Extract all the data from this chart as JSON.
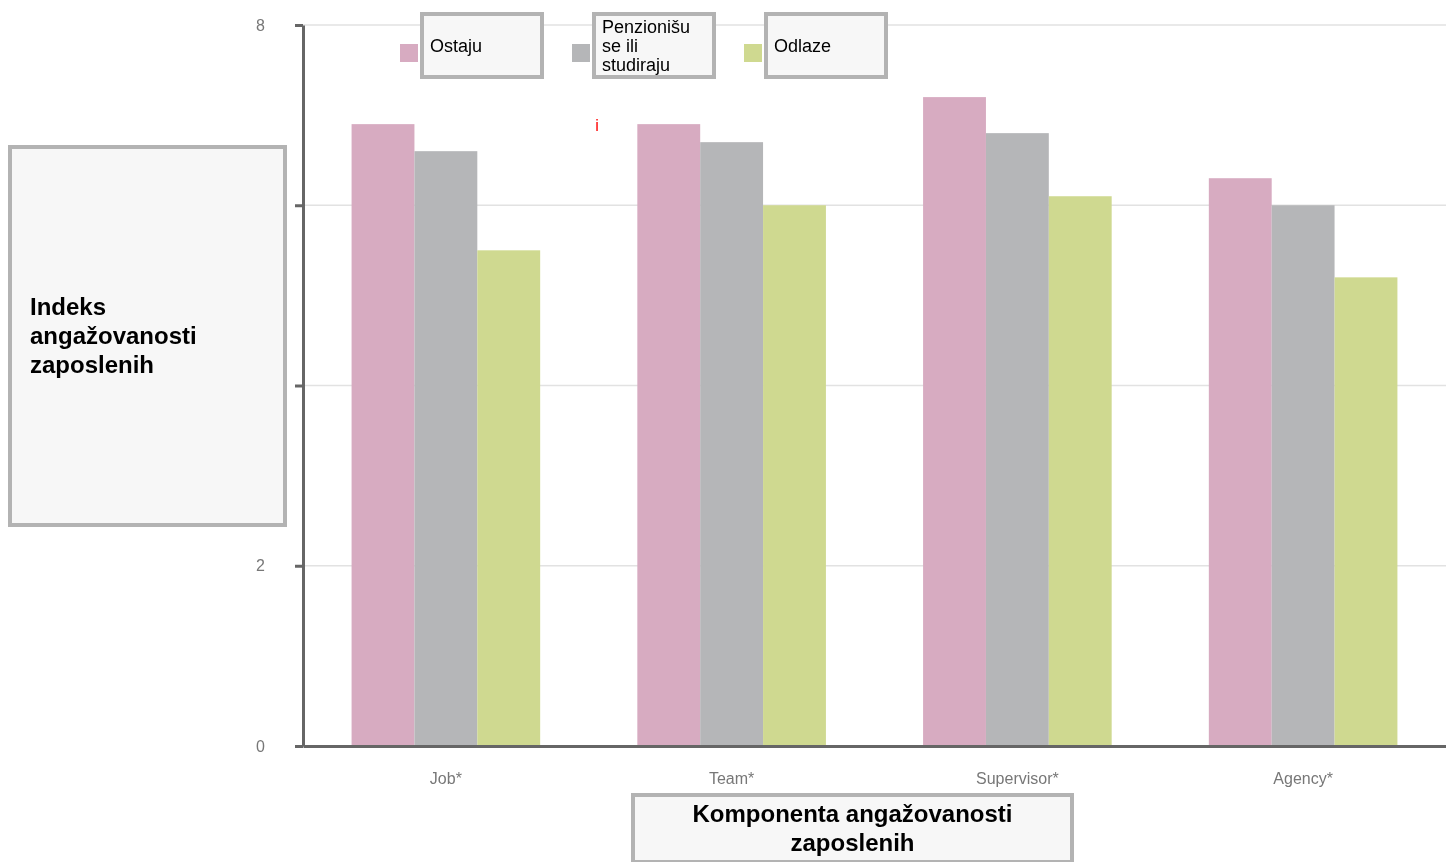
{
  "chart_data": {
    "type": "bar",
    "xlabel": "Komponenta angažovanosti zaposlenih",
    "ylabel": "Indeks angažovanosti zaposlenih",
    "categories": [
      "Job*",
      "Team*",
      "Supervisor*",
      "Agency*"
    ],
    "series": [
      {
        "name": "Ostaju",
        "color": "#d7abc1",
        "values": [
          6.9,
          6.9,
          7.2,
          6.3
        ]
      },
      {
        "name": "Penzionišu se ili studiraju",
        "color": "#b5b6b8",
        "values": [
          6.6,
          6.7,
          6.8,
          6.0
        ]
      },
      {
        "name": "Odlaze",
        "color": "#cfd990",
        "values": [
          5.5,
          6.0,
          6.1,
          5.2
        ]
      }
    ],
    "ylim": [
      0,
      8
    ],
    "yticks": [
      0,
      2,
      {
        "value": 4,
        "label": null
      },
      {
        "value": 6,
        "label": null
      },
      8
    ],
    "grid": "y",
    "legend": "top",
    "annotations": [
      "i"
    ]
  }
}
